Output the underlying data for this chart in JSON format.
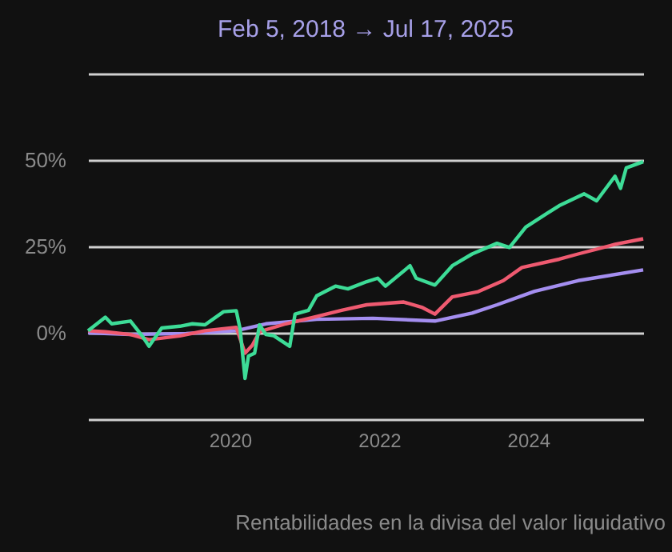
{
  "chart_data": {
    "type": "line",
    "title": "Feb 5, 2018    →    Jul 17, 2025",
    "annotations": [
      "Rentabilidades en la divisa del valor liquidativo"
    ],
    "xlim": [
      "2018-02-05",
      "2025-07-17"
    ],
    "xticks": [
      "2020",
      "2022",
      "2024"
    ],
    "ylim": [
      -25,
      75
    ],
    "yticks": [
      {
        "value": 75,
        "label": null
      },
      {
        "value": 50,
        "label": "50%"
      },
      {
        "value": 25,
        "label": "25%"
      },
      {
        "value": 0,
        "label": "0%"
      },
      {
        "value": -25,
        "label": null
      }
    ],
    "grid": "y",
    "marker": "none",
    "line_style": "solid",
    "series": [
      {
        "color": "#a48ef0",
        "x": [
          "2018-02-05",
          "2018-09",
          "2019-06",
          "2020-02",
          "2020-06-25",
          "2021-03",
          "2021-12",
          "2022-10",
          "2023-04",
          "2023-08",
          "2024-02",
          "2024-09",
          "2025-07-17"
        ],
        "values": [
          0,
          -0.5,
          -0.2,
          0.6,
          2.6,
          3.9,
          4.2,
          3.4,
          5.7,
          8.1,
          12,
          15.1,
          18.2
        ]
      },
      {
        "color": "#ef5a70",
        "x": [
          "2018-02-05",
          "2018-05",
          "2018-09",
          "2018-12",
          "2019-05",
          "2019-09",
          "2020-02",
          "2020-03-15",
          "2020-04-20",
          "2020-05-25",
          "2020-10",
          "2021-03",
          "2021-07",
          "2021-11",
          "2022-05",
          "2022-08",
          "2022-10",
          "2022-12-25",
          "2023-05",
          "2023-09",
          "2023-12",
          "2024-06",
          "2024-09",
          "2025-03",
          "2025-07-17"
        ],
        "values": [
          0.6,
          0.3,
          -0.5,
          -2,
          -0.9,
          0.6,
          1.6,
          -5.9,
          -3.6,
          0.3,
          2.6,
          4.7,
          6.5,
          8.1,
          8.9,
          7.3,
          5.4,
          10.4,
          11.9,
          15.1,
          18.9,
          21.3,
          22.8,
          25.6,
          27.2
        ]
      },
      {
        "color": "#3ddc97",
        "x": [
          "2018-02-05",
          "2018-05",
          "2018-06",
          "2018-09",
          "2018-11",
          "2018-12",
          "2019-02",
          "2019-05",
          "2019-07",
          "2019-09",
          "2019-12",
          "2020-02",
          "2020-02-20",
          "2020-03-15",
          "2020-04",
          "2020-05",
          "2020-05-25",
          "2020-06-25",
          "2020-08",
          "2020-10-20",
          "2020-11-15",
          "2021-01-20",
          "2021-03",
          "2021-06",
          "2021-08",
          "2021-11",
          "2021-12-25",
          "2022-02",
          "2022-06",
          "2022-07",
          "2022-10",
          "2022-12-25",
          "2023-04",
          "2023-08",
          "2023-10",
          "2023-12-20",
          "2024-04",
          "2024-06",
          "2024-10",
          "2024-12",
          "2025-03",
          "2025-03-28",
          "2025-04-25",
          "2025-07-17"
        ],
        "values": [
          0.6,
          4.5,
          2.6,
          3.4,
          -1.2,
          -3.9,
          1.4,
          1.9,
          2.6,
          2.3,
          6.1,
          6.4,
          1.1,
          -13.2,
          -6.7,
          -5.9,
          2.3,
          -0.5,
          -0.8,
          -3.9,
          5.4,
          6.5,
          10.7,
          13.5,
          12.7,
          14.8,
          15.8,
          13.5,
          19.4,
          15.8,
          13.8,
          19.4,
          22.8,
          25.9,
          24.7,
          30.6,
          34.5,
          36.8,
          40.2,
          38.2,
          45.3,
          41.8,
          47.7,
          49.5
        ]
      }
    ]
  }
}
